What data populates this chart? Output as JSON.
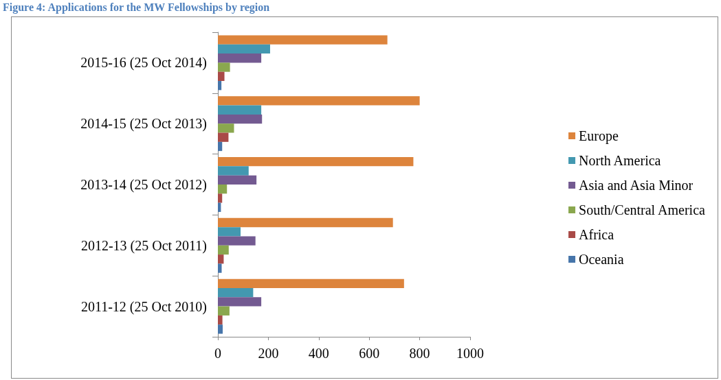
{
  "chart_data": {
    "type": "bar",
    "orientation": "horizontal",
    "title": "Figure 4: Applications for the MW Fellowships by region",
    "categories": [
      "2015-16 (25 Oct 2014)",
      "2014-15 (25 Oct 2013)",
      "2013-14 (25 Oct 2012)",
      "2012-13 (25 Oct 2011)",
      "2011-12 (25 Oct 2010)"
    ],
    "series": [
      {
        "name": "Europe",
        "color": "#dd843c",
        "values": [
          672,
          800,
          775,
          694,
          738
        ]
      },
      {
        "name": "North America",
        "color": "#4398b0",
        "values": [
          207,
          172,
          122,
          90,
          140
        ]
      },
      {
        "name": "Asia and Asia Minor",
        "color": "#735a91",
        "values": [
          172,
          175,
          153,
          149,
          172
        ]
      },
      {
        "name": "South/Central America",
        "color": "#8aa74e",
        "values": [
          48,
          64,
          36,
          43,
          46
        ]
      },
      {
        "name": "Africa",
        "color": "#a94a47",
        "values": [
          26,
          42,
          17,
          23,
          18
        ]
      },
      {
        "name": "Oceania",
        "color": "#4675aa",
        "values": [
          14,
          17,
          12,
          15,
          19
        ]
      }
    ],
    "xlim": [
      0,
      1000
    ],
    "xticks": [
      0,
      200,
      400,
      600,
      800,
      1000
    ],
    "grid": false,
    "legend": "right"
  }
}
